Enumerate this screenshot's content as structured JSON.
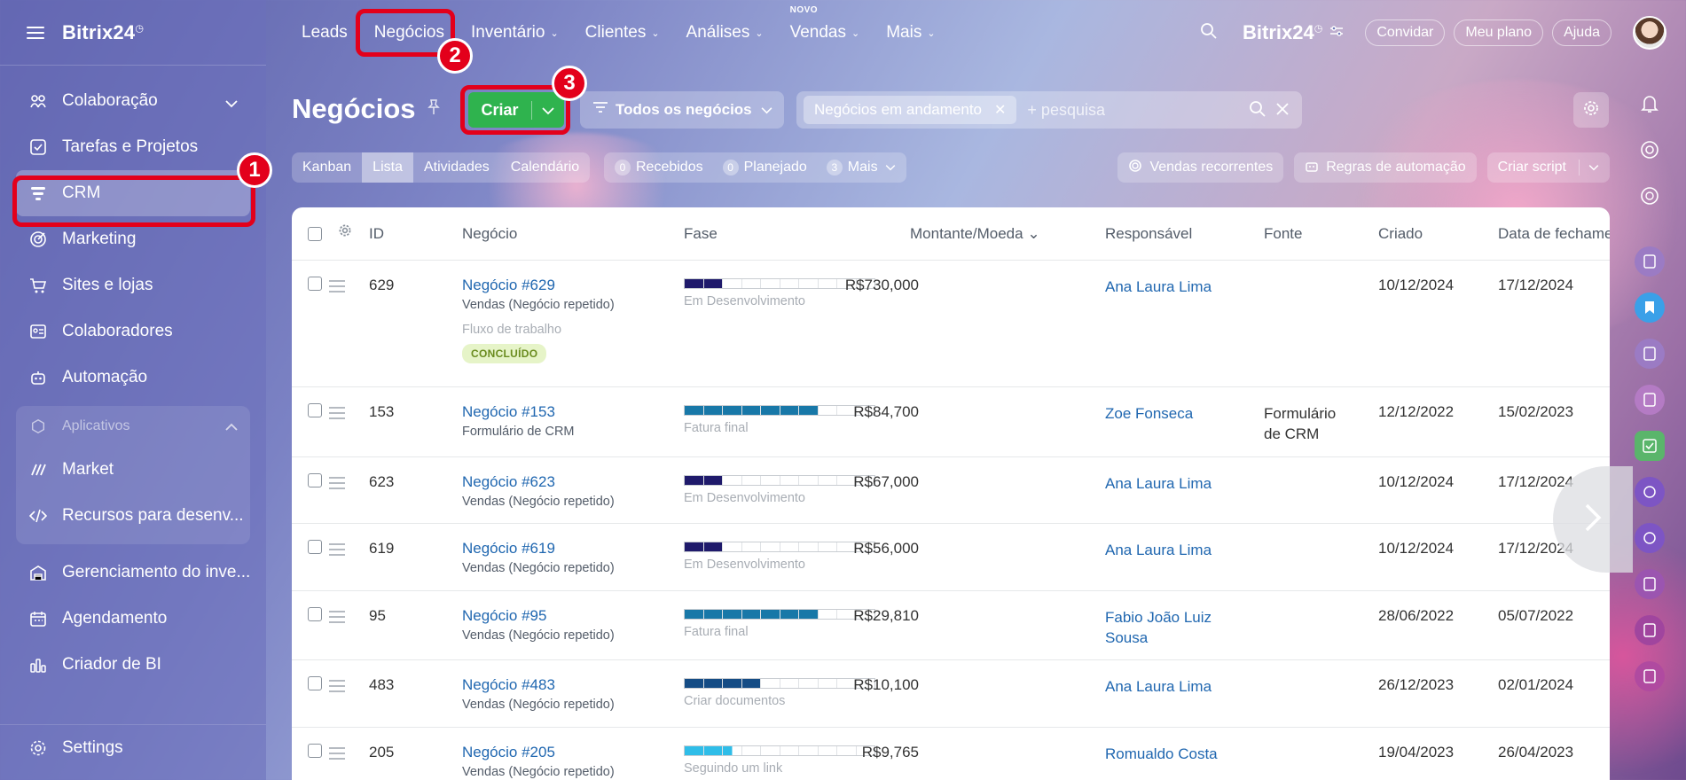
{
  "sidebar": {
    "brand": "Bitrix24",
    "items": [
      {
        "label": "Colaboração",
        "icon": "collaboration-icon"
      },
      {
        "label": "Tarefas e Projetos",
        "icon": "tasks-icon"
      },
      {
        "label": "CRM",
        "icon": "crm-icon"
      },
      {
        "label": "Marketing",
        "icon": "marketing-icon"
      },
      {
        "label": "Sites e lojas",
        "icon": "cart-icon"
      },
      {
        "label": "Colaboradores",
        "icon": "employees-icon"
      },
      {
        "label": "Automação",
        "icon": "robot-icon"
      }
    ],
    "apps": {
      "label": "Aplicativos",
      "items": [
        {
          "label": "Market",
          "icon": "market-icon"
        },
        {
          "label": "Recursos para desenv...",
          "icon": "code-icon"
        }
      ]
    },
    "more_items": [
      {
        "label": "Gerenciamento do inve...",
        "icon": "inventory-icon"
      },
      {
        "label": "Agendamento",
        "icon": "calendar-icon"
      },
      {
        "label": "Criador de BI",
        "icon": "bi-chart-icon"
      }
    ],
    "settings_label": "Settings"
  },
  "topnav": {
    "tabs": [
      {
        "label": "Leads",
        "caret": false
      },
      {
        "label": "Negócios",
        "caret": false
      },
      {
        "label": "Inventário",
        "caret": true
      },
      {
        "label": "Clientes",
        "caret": true
      },
      {
        "label": "Análises",
        "caret": true
      },
      {
        "label": "Vendas",
        "caret": true,
        "tag": "NOVO"
      },
      {
        "label": "Mais",
        "caret": true
      }
    ],
    "brand": "Bitrix24",
    "buttons": {
      "invite": "Convidar",
      "plan": "Meu plano",
      "help": "Ajuda"
    }
  },
  "page": {
    "title": "Negócios",
    "create_label": "Criar",
    "filter_label": "Todos os negócios",
    "search_chip": "Negócios em andamento",
    "search_placeholder": "+ pesquisa"
  },
  "views": [
    "Kanban",
    "Lista",
    "Atividades",
    "Calendário"
  ],
  "active_view": "Lista",
  "counters": [
    {
      "num": "0",
      "label": "Recebidos"
    },
    {
      "num": "0",
      "label": "Planejado"
    },
    {
      "num": "3",
      "label": "Mais"
    }
  ],
  "actions": {
    "recurring": "Vendas recorrentes",
    "automation": "Regras de automação",
    "script": "Criar script"
  },
  "table": {
    "headers": {
      "id": "ID",
      "deal": "Negócio",
      "stage": "Fase",
      "amount": "Montante/Moeda",
      "responsible": "Responsável",
      "source": "Fonte",
      "created": "Criado",
      "closed": "Data de fechame"
    },
    "rows": [
      {
        "id": "629",
        "deal": "Negócio #629",
        "sub": "Vendas (Negócio repetido)",
        "workflow": "Fluxo de trabalho",
        "status": "CONCLUÍDO",
        "stage": "Em Desenvolvimento",
        "stage_filled": 2,
        "stage_color": "#1f1a6b",
        "amount": "R$730,000",
        "responsible": "Ana Laura Lima",
        "source": "",
        "created": "10/12/2024",
        "closed": "17/12/2024"
      },
      {
        "id": "153",
        "deal": "Negócio #153",
        "sub": "Formulário de CRM",
        "stage": "Fatura final",
        "stage_filled": 7,
        "stage_color": "#1878a8",
        "amount": "R$84,700",
        "responsible": "Zoe Fonseca",
        "source": "Formulário de CRM",
        "created": "12/12/2022",
        "closed": "15/02/2023"
      },
      {
        "id": "623",
        "deal": "Negócio #623",
        "sub": "Vendas (Negócio repetido)",
        "stage": "Em Desenvolvimento",
        "stage_filled": 2,
        "stage_color": "#1f1a6b",
        "amount": "R$67,000",
        "responsible": "Ana Laura Lima",
        "source": "",
        "created": "10/12/2024",
        "closed": "17/12/2024"
      },
      {
        "id": "619",
        "deal": "Negócio #619",
        "sub": "Vendas (Negócio repetido)",
        "stage": "Em Desenvolvimento",
        "stage_filled": 2,
        "stage_color": "#1f1a6b",
        "amount": "R$56,000",
        "responsible": "Ana Laura Lima",
        "source": "",
        "created": "10/12/2024",
        "closed": "17/12/2024"
      },
      {
        "id": "95",
        "deal": "Negócio #95",
        "sub": "Vendas (Negócio repetido)",
        "stage": "Fatura final",
        "stage_filled": 7,
        "stage_color": "#1878a8",
        "amount": "R$29,810",
        "responsible": "Fabio João Luiz Sousa",
        "source": "",
        "created": "28/06/2022",
        "closed": "05/07/2022"
      },
      {
        "id": "483",
        "deal": "Negócio #483",
        "sub": "Vendas (Negócio repetido)",
        "stage": "Criar documentos",
        "stage_filled": 4,
        "stage_color": "#154c85",
        "amount": "R$10,100",
        "responsible": "Ana Laura Lima",
        "source": "",
        "created": "26/12/2023",
        "closed": "02/01/2024"
      },
      {
        "id": "205",
        "deal": "Negócio #205",
        "sub": "Vendas (Negócio repetido)",
        "stage": "Seguindo um link",
        "stage_filled": 2.5,
        "stage_color": "#2fbde8",
        "amount": "R$9,765",
        "responsible": "Romualdo Costa",
        "source": "",
        "created": "19/04/2023",
        "closed": "26/04/2023"
      }
    ]
  },
  "annotations": [
    "1",
    "2",
    "3"
  ]
}
